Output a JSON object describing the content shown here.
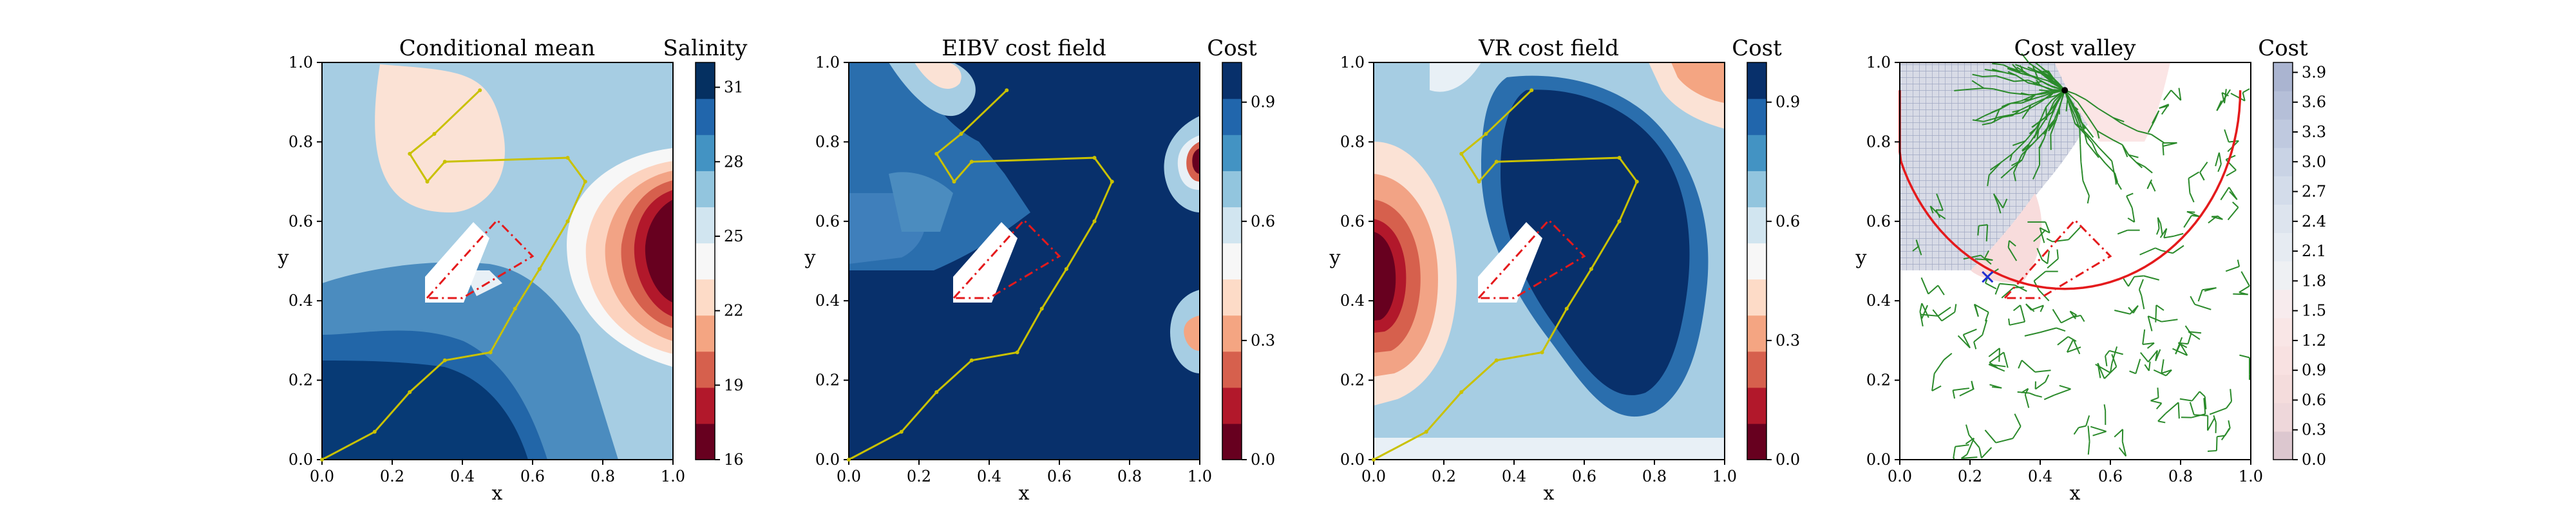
{
  "figure": {
    "panels": [
      {
        "title": "Conditional mean",
        "colorbar": {
          "label": "Salinity",
          "ticks": [
            "16",
            "19",
            "22",
            "25",
            "28",
            "31"
          ]
        }
      },
      {
        "title": "EIBV cost field",
        "colorbar": {
          "label": "Cost",
          "ticks": [
            "0.0",
            "0.3",
            "0.6",
            "0.9"
          ]
        }
      },
      {
        "title": "VR cost field",
        "colorbar": {
          "label": "Cost",
          "ticks": [
            "0.0",
            "0.3",
            "0.6",
            "0.9"
          ]
        }
      },
      {
        "title": "Cost valley",
        "colorbar": {
          "label": "Cost",
          "ticks": [
            "0.0",
            "0.3",
            "0.6",
            "0.9",
            "1.2",
            "1.5",
            "1.8",
            "2.1",
            "2.4",
            "2.7",
            "3.0",
            "3.3",
            "3.6",
            "3.9"
          ]
        }
      }
    ],
    "axis": {
      "xlabel": "x",
      "ylabel": "y",
      "ticks": [
        "0.0",
        "0.2",
        "0.4",
        "0.6",
        "0.8",
        "1.0"
      ]
    }
  },
  "chart_data": [
    {
      "type": "heatmap",
      "title": "Conditional mean",
      "xlabel": "x",
      "ylabel": "y",
      "xlim": [
        0,
        1
      ],
      "ylim": [
        0,
        1
      ],
      "colorbar": {
        "label": "Salinity",
        "range": [
          16,
          32
        ],
        "ticks": [
          16,
          19,
          22,
          25,
          28,
          31
        ],
        "colormap": "RdBu"
      },
      "field_features": [
        {
          "kind": "high",
          "center": [
            0.08,
            0.08
          ],
          "value": 31
        },
        {
          "kind": "low",
          "center": [
            0.92,
            0.55
          ],
          "value": 16
        },
        {
          "kind": "moderate",
          "center": [
            0.45,
            0.85
          ],
          "value": 23
        }
      ],
      "obstacle_polygon": [
        [
          0.3,
          0.4
        ],
        [
          0.5,
          0.6
        ],
        [
          0.6,
          0.5
        ],
        [
          0.4,
          0.4
        ]
      ],
      "path": [
        [
          0.0,
          0.0
        ],
        [
          0.15,
          0.07
        ],
        [
          0.25,
          0.17
        ],
        [
          0.35,
          0.25
        ],
        [
          0.48,
          0.27
        ],
        [
          0.55,
          0.38
        ],
        [
          0.62,
          0.48
        ],
        [
          0.7,
          0.6
        ],
        [
          0.75,
          0.7
        ],
        [
          0.7,
          0.76
        ],
        [
          0.35,
          0.75
        ],
        [
          0.3,
          0.7
        ],
        [
          0.25,
          0.77
        ],
        [
          0.32,
          0.82
        ],
        [
          0.45,
          0.93
        ]
      ]
    },
    {
      "type": "heatmap",
      "title": "EIBV cost field",
      "xlabel": "x",
      "ylabel": "y",
      "xlim": [
        0,
        1
      ],
      "ylim": [
        0,
        1
      ],
      "colorbar": {
        "label": "Cost",
        "range": [
          0,
          1
        ],
        "ticks": [
          0.0,
          0.3,
          0.6,
          0.9
        ],
        "colormap": "RdBu"
      },
      "field_features": [
        {
          "kind": "low",
          "center": [
            0.96,
            0.74
          ],
          "value": 0.0
        },
        {
          "kind": "low",
          "center": [
            0.95,
            0.33
          ],
          "value": 0.2
        },
        {
          "kind": "low",
          "center": [
            0.27,
            0.93
          ],
          "value": 0.5
        }
      ],
      "obstacle_polygon": [
        [
          0.3,
          0.4
        ],
        [
          0.5,
          0.6
        ],
        [
          0.6,
          0.5
        ],
        [
          0.4,
          0.4
        ]
      ],
      "path": [
        [
          0.0,
          0.0
        ],
        [
          0.15,
          0.07
        ],
        [
          0.25,
          0.17
        ],
        [
          0.35,
          0.25
        ],
        [
          0.48,
          0.27
        ],
        [
          0.55,
          0.38
        ],
        [
          0.62,
          0.48
        ],
        [
          0.7,
          0.6
        ],
        [
          0.75,
          0.7
        ],
        [
          0.7,
          0.76
        ],
        [
          0.35,
          0.75
        ],
        [
          0.3,
          0.7
        ],
        [
          0.25,
          0.77
        ],
        [
          0.32,
          0.82
        ],
        [
          0.45,
          0.93
        ]
      ]
    },
    {
      "type": "heatmap",
      "title": "VR cost field",
      "xlabel": "x",
      "ylabel": "y",
      "xlim": [
        0,
        1
      ],
      "ylim": [
        0,
        1
      ],
      "colorbar": {
        "label": "Cost",
        "range": [
          0,
          1
        ],
        "ticks": [
          0.0,
          0.3,
          0.6,
          0.9
        ],
        "colormap": "RdBu"
      },
      "field_features": [
        {
          "kind": "low",
          "center": [
            0.07,
            0.45
          ],
          "value": 0.0
        },
        {
          "kind": "high",
          "center": [
            0.5,
            0.75
          ],
          "value": 1.0
        },
        {
          "kind": "moderate",
          "center": [
            0.8,
            0.95
          ],
          "value": 0.4
        }
      ],
      "obstacle_polygon": [
        [
          0.3,
          0.4
        ],
        [
          0.5,
          0.6
        ],
        [
          0.6,
          0.5
        ],
        [
          0.4,
          0.4
        ]
      ],
      "path": [
        [
          0.0,
          0.0
        ],
        [
          0.15,
          0.07
        ],
        [
          0.25,
          0.17
        ],
        [
          0.35,
          0.25
        ],
        [
          0.48,
          0.27
        ],
        [
          0.55,
          0.38
        ],
        [
          0.62,
          0.48
        ],
        [
          0.7,
          0.6
        ],
        [
          0.75,
          0.7
        ],
        [
          0.7,
          0.76
        ],
        [
          0.35,
          0.75
        ],
        [
          0.3,
          0.7
        ],
        [
          0.25,
          0.77
        ],
        [
          0.32,
          0.82
        ],
        [
          0.45,
          0.93
        ]
      ]
    },
    {
      "type": "heatmap",
      "title": "Cost valley",
      "xlabel": "x",
      "ylabel": "y",
      "xlim": [
        0,
        1
      ],
      "ylim": [
        0,
        1
      ],
      "colorbar": {
        "label": "Cost",
        "range": [
          0,
          4.0
        ],
        "ticks": [
          0.0,
          0.3,
          0.6,
          0.9,
          1.2,
          1.5,
          1.8,
          2.1,
          2.4,
          2.7,
          3.0,
          3.3,
          3.6,
          3.9
        ],
        "colormap": "RdBu"
      },
      "tree_root": [
        0.47,
        0.93
      ],
      "start_marker": [
        0.25,
        0.46
      ],
      "boundary_circle": {
        "center": [
          0.47,
          0.93
        ],
        "radius": 0.5
      },
      "obstacle_polygon": [
        [
          0.3,
          0.4
        ],
        [
          0.5,
          0.6
        ],
        [
          0.6,
          0.5
        ],
        [
          0.4,
          0.4
        ]
      ]
    }
  ]
}
